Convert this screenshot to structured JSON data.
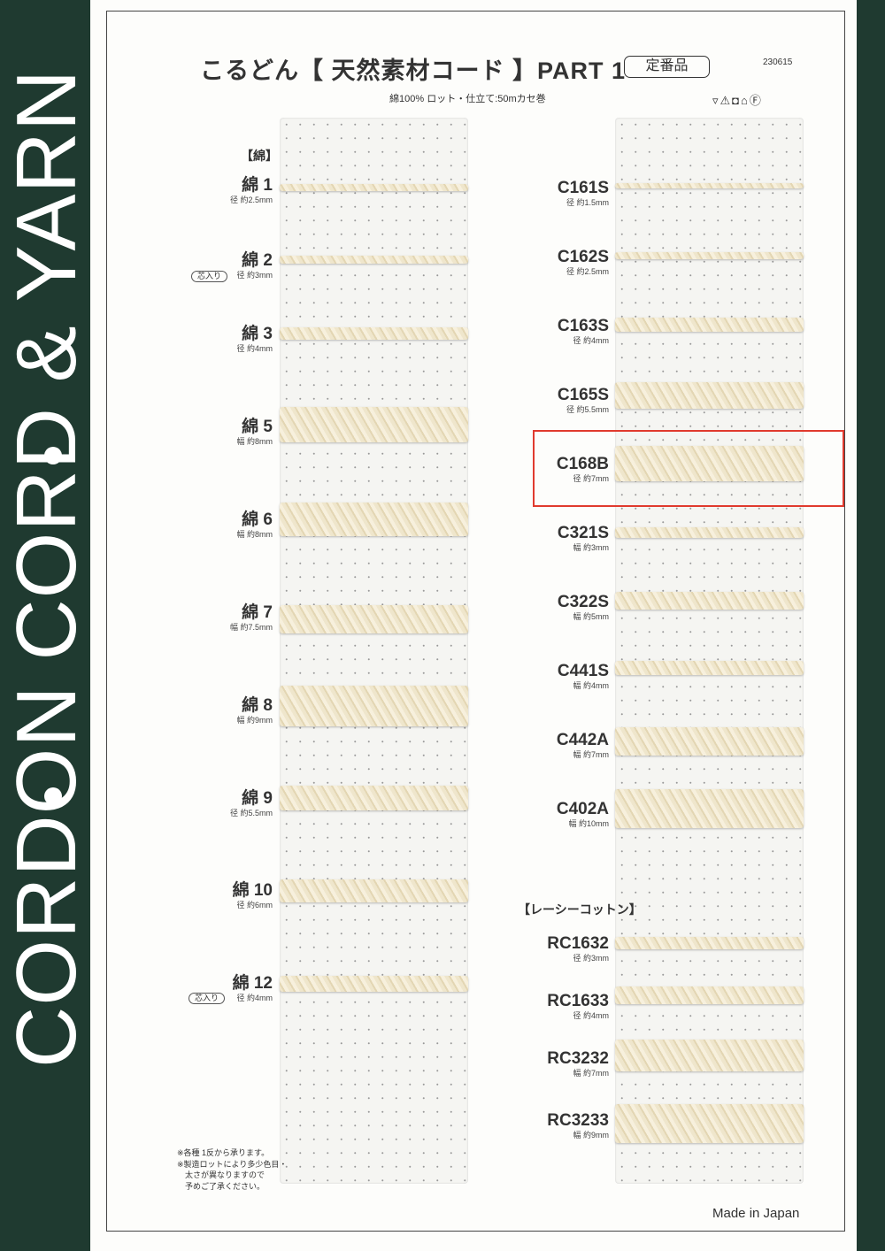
{
  "side_text": "CORDON CORD & YARN",
  "header": {
    "title": "こるどん【 天然素材コード 】PART 1",
    "badge": "定番品",
    "date_code": "230615",
    "subtitle": "綿100%  ロット・仕立て:50mカセ巻",
    "care_symbols": "▿⚠◘⌂Ⓕ"
  },
  "left": {
    "heading": "【綿】",
    "core_label": "芯入り",
    "items": [
      {
        "name": "綿 1",
        "size": "径 約2.5mm"
      },
      {
        "name": "綿 2",
        "size": "径 約3mm"
      },
      {
        "name": "綿 3",
        "size": "径 約4mm"
      },
      {
        "name": "綿 5",
        "size": "幅 約8mm"
      },
      {
        "name": "綿 6",
        "size": "幅 約8mm"
      },
      {
        "name": "綿 7",
        "size": "幅 約7.5mm"
      },
      {
        "name": "綿 8",
        "size": "幅 約9mm"
      },
      {
        "name": "綿 9",
        "size": "径 約5.5mm"
      },
      {
        "name": "綿 10",
        "size": "径 約6mm"
      },
      {
        "name": "綿 12",
        "size": "径 約4mm"
      }
    ]
  },
  "right": {
    "heading": "【レーシーコットン】",
    "highlighted": "C168B",
    "items": [
      {
        "name": "C161S",
        "size": "径 約1.5mm"
      },
      {
        "name": "C162S",
        "size": "径 約2.5mm"
      },
      {
        "name": "C163S",
        "size": "径 約4mm"
      },
      {
        "name": "C165S",
        "size": "径 約5.5mm"
      },
      {
        "name": "C168B",
        "size": "径 約7mm"
      },
      {
        "name": "C321S",
        "size": "幅 約3mm"
      },
      {
        "name": "C322S",
        "size": "幅 約5mm"
      },
      {
        "name": "C441S",
        "size": "幅 約4mm"
      },
      {
        "name": "C442A",
        "size": "幅 約7mm"
      },
      {
        "name": "C402A",
        "size": "幅 約10mm"
      },
      {
        "name": "RC1632",
        "size": "径 約3mm"
      },
      {
        "name": "RC1633",
        "size": "径 約4mm"
      },
      {
        "name": "RC3232",
        "size": "幅 約7mm"
      },
      {
        "name": "RC3233",
        "size": "幅 約9mm"
      }
    ]
  },
  "notes": [
    "※各種 1反から承ります。",
    "※製造ロットにより多少色目・",
    "太さが異なりますので",
    "予めご了承ください。"
  ],
  "footer": "Made in Japan",
  "colors": {
    "band": "#1f3a30",
    "highlight": "#e03a2e",
    "cord": "#ece2c6"
  }
}
